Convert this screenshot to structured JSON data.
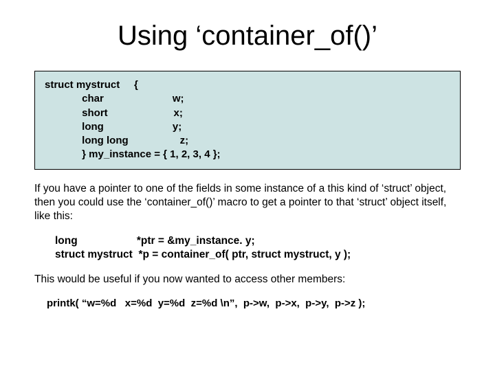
{
  "title": "Using ‘container_of()’",
  "codebox": {
    "background_color": "#cde3e3",
    "border_color": "#000000",
    "font_weight": "bold",
    "lines": {
      "l1": "struct mystruct     {",
      "l2": "             char                        w;",
      "l3": "             short                       x;",
      "l4": "             long                        y;",
      "l5": "             long long                  z;",
      "l6": "             } my_instance = { 1, 2, 3, 4 };"
    }
  },
  "para1": "If you have a pointer to one of the fields in some instance of a this kind of ‘struct’ object, then you could use the ‘container_of()’ macro to get a pointer to that ‘struct’ object itself, like this:",
  "example": {
    "l1": "long                    *ptr = &my_instance. y;",
    "l2": "struct mystruct  *p = container_of( ptr, struct mystruct, y );"
  },
  "para2": "This would be useful if you now wanted to access other members:",
  "printk": "printk( “w=%d   x=%d  y=%d  z=%d \\n”,  p->w,  p->x,  p->y,  p->z );",
  "colors": {
    "background": "#ffffff",
    "text": "#000000"
  }
}
